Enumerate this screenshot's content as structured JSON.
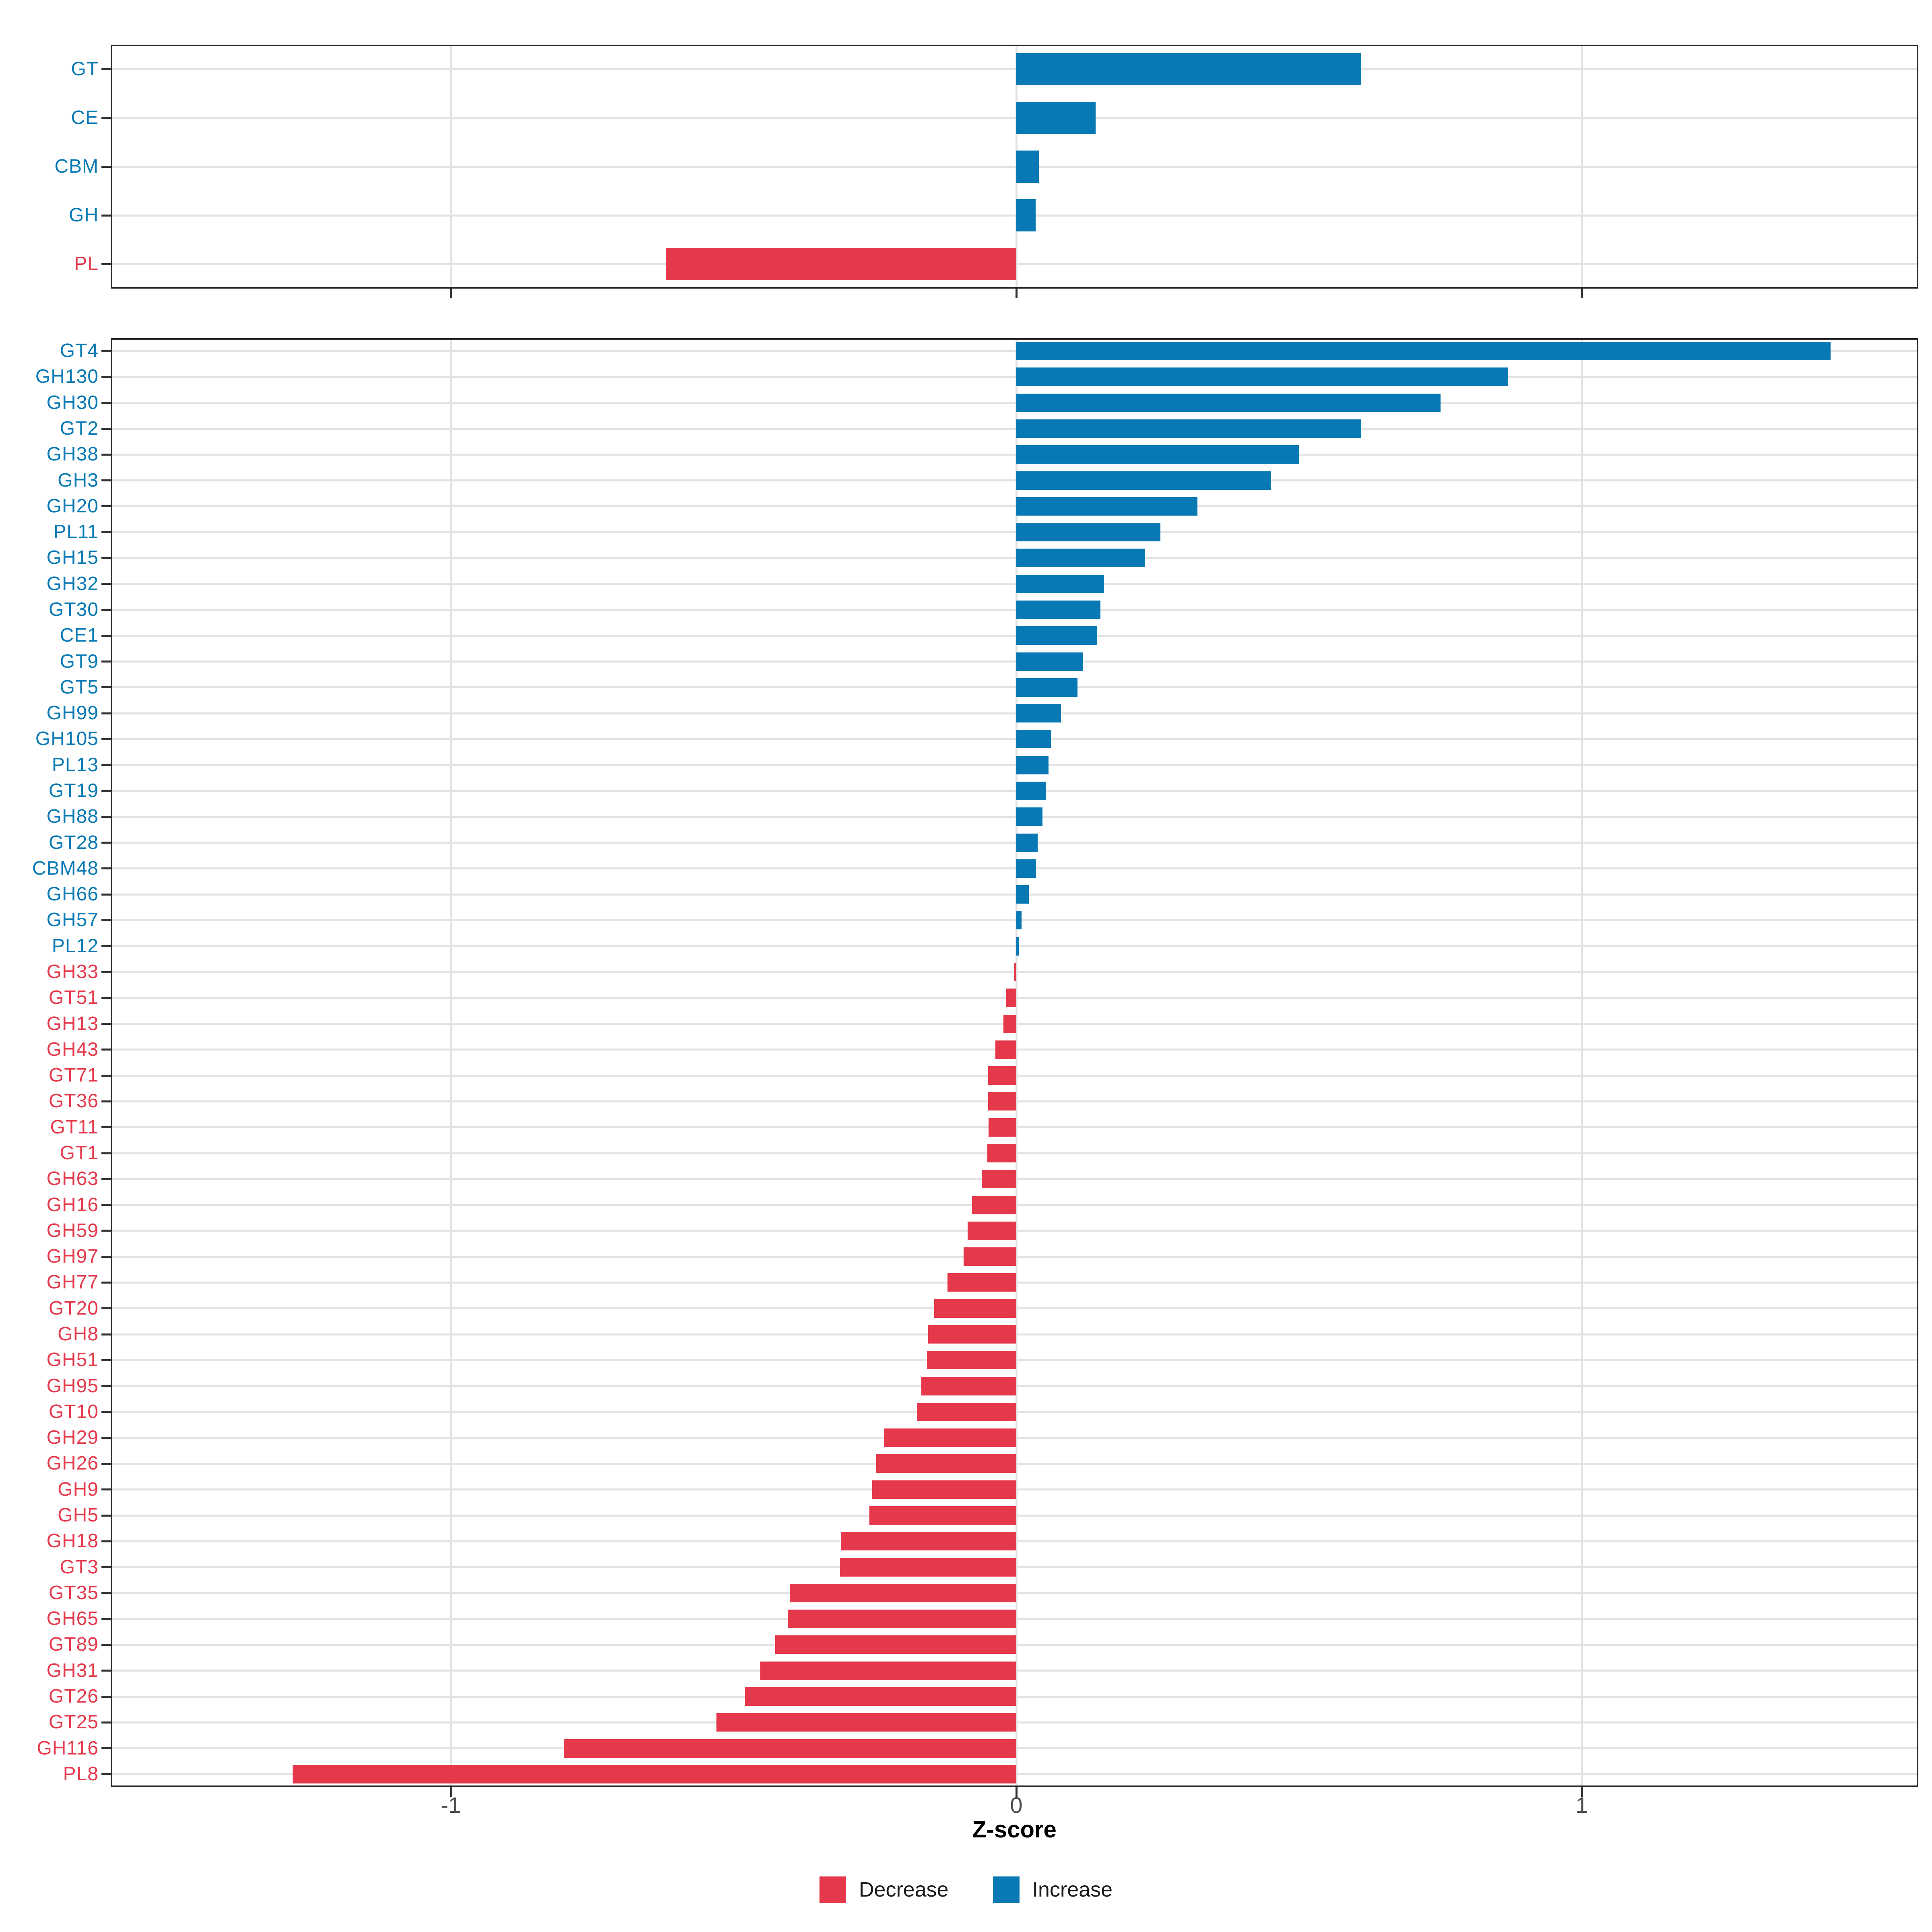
{
  "axis": {
    "title": "Z-score",
    "tick_values": [
      -1,
      0,
      1
    ],
    "tick_labels": [
      "-1",
      "0",
      "1"
    ]
  },
  "legend": {
    "items": [
      {
        "label": "Decrease",
        "color_key": "decrease"
      },
      {
        "label": "Increase",
        "color_key": "increase"
      }
    ]
  },
  "colors": {
    "increase": "#0879B4",
    "decrease": "#E5394B",
    "gridline": "#E3E3E3",
    "panel_border": "#262626",
    "tick": "#333333",
    "tick_label": "#4D4D4D",
    "axis_title": "#000000",
    "background": "#FFFFFF"
  },
  "chart_data": [
    {
      "type": "bar",
      "orientation": "horizontal",
      "panel": "top",
      "title": "",
      "xlabel": "Z-score",
      "xlim": [
        -1.6,
        1.6
      ],
      "x_ticks": [
        -1,
        0,
        1
      ],
      "grid": true,
      "categories": [
        "GT",
        "CE",
        "CBM",
        "GH",
        "PL"
      ],
      "values": [
        0.61,
        0.14,
        0.04,
        0.034,
        -0.62
      ]
    },
    {
      "type": "bar",
      "orientation": "horizontal",
      "panel": "bottom",
      "title": "",
      "xlabel": "Z-score",
      "xlim": [
        -1.6,
        1.6
      ],
      "x_ticks": [
        -1,
        0,
        1
      ],
      "grid": true,
      "categories": [
        "GT4",
        "GH130",
        "GH30",
        "GT2",
        "GH38",
        "GH3",
        "GH20",
        "PL11",
        "GH15",
        "GH32",
        "GT30",
        "CE1",
        "GT9",
        "GT5",
        "GH99",
        "GH105",
        "PL13",
        "GT19",
        "GH88",
        "GT28",
        "CBM48",
        "GH66",
        "GH57",
        "PL12",
        "GH33",
        "GT51",
        "GH13",
        "GH43",
        "GT71",
        "GT36",
        "GT11",
        "GT1",
        "GH63",
        "GH16",
        "GH59",
        "GH97",
        "GH77",
        "GT20",
        "GH8",
        "GH51",
        "GH95",
        "GT10",
        "GH29",
        "GH26",
        "GH9",
        "GH5",
        "GH18",
        "GT3",
        "GT35",
        "GH65",
        "GT89",
        "GH31",
        "GT26",
        "GT25",
        "GH116",
        "PL8"
      ],
      "values": [
        1.44,
        0.87,
        0.75,
        0.61,
        0.5,
        0.45,
        0.32,
        0.255,
        0.228,
        0.155,
        0.149,
        0.143,
        0.118,
        0.108,
        0.079,
        0.061,
        0.057,
        0.053,
        0.046,
        0.038,
        0.035,
        0.022,
        0.009,
        0.005,
        -0.004,
        -0.018,
        -0.023,
        -0.037,
        -0.05,
        -0.05,
        -0.049,
        -0.051,
        -0.061,
        -0.078,
        -0.086,
        -0.093,
        -0.122,
        -0.145,
        -0.156,
        -0.158,
        -0.168,
        -0.176,
        -0.234,
        -0.248,
        -0.255,
        -0.26,
        -0.31,
        -0.312,
        -0.401,
        -0.404,
        -0.426,
        -0.453,
        -0.48,
        -0.53,
        -0.8,
        -1.28
      ]
    }
  ]
}
